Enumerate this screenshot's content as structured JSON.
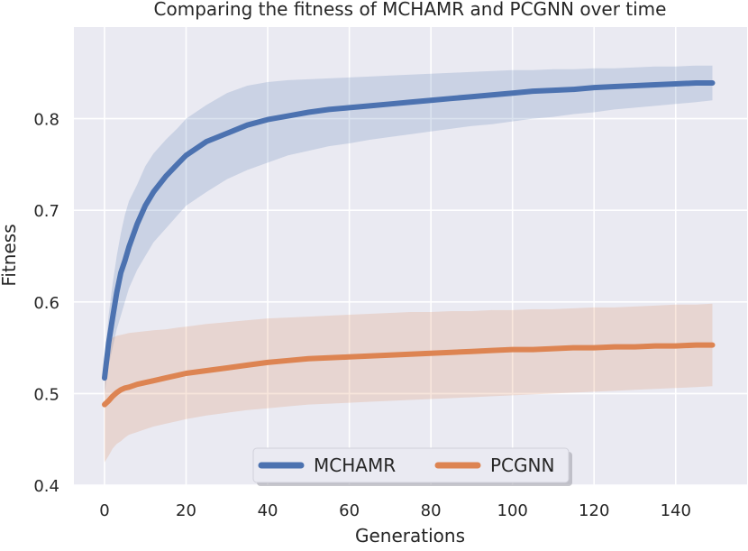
{
  "chart_data": {
    "type": "line",
    "title": "Comparing the fitness of MCHAMR and PCGNN over time",
    "xlabel": "Generations",
    "ylabel": "Fitness",
    "xlim": [
      -7.5,
      157.5
    ],
    "ylim": [
      0.4,
      0.9
    ],
    "xticks": [
      0,
      20,
      40,
      60,
      80,
      100,
      120,
      140
    ],
    "yticks": [
      0.4,
      0.5,
      0.6,
      0.7,
      0.8
    ],
    "xtick_labels": [
      "0",
      "20",
      "40",
      "60",
      "80",
      "100",
      "120",
      "140"
    ],
    "ytick_labels": [
      "0.4",
      "0.5",
      "0.6",
      "0.7",
      "0.8"
    ],
    "grid": true,
    "legend_position": "bottom-center",
    "series": [
      {
        "name": "MCHAMR",
        "color": "#4c72b0",
        "x": [
          0,
          1,
          2,
          3,
          4,
          5,
          6,
          8,
          10,
          12,
          15,
          18,
          20,
          25,
          30,
          35,
          40,
          45,
          50,
          55,
          60,
          65,
          70,
          75,
          80,
          85,
          90,
          95,
          100,
          105,
          110,
          115,
          120,
          125,
          130,
          135,
          140,
          145,
          149
        ],
        "mean": [
          0.517,
          0.555,
          0.583,
          0.61,
          0.632,
          0.645,
          0.66,
          0.685,
          0.705,
          0.72,
          0.737,
          0.751,
          0.76,
          0.775,
          0.784,
          0.793,
          0.799,
          0.803,
          0.807,
          0.81,
          0.812,
          0.814,
          0.816,
          0.818,
          0.82,
          0.822,
          0.824,
          0.826,
          0.828,
          0.83,
          0.831,
          0.832,
          0.834,
          0.835,
          0.836,
          0.837,
          0.838,
          0.839,
          0.839
        ],
        "lower": [
          0.5,
          0.53,
          0.55,
          0.57,
          0.585,
          0.6,
          0.615,
          0.635,
          0.65,
          0.665,
          0.68,
          0.695,
          0.705,
          0.72,
          0.734,
          0.744,
          0.752,
          0.76,
          0.765,
          0.77,
          0.773,
          0.777,
          0.78,
          0.783,
          0.786,
          0.789,
          0.792,
          0.794,
          0.797,
          0.8,
          0.802,
          0.805,
          0.807,
          0.81,
          0.812,
          0.814,
          0.816,
          0.818,
          0.82
        ],
        "upper": [
          0.535,
          0.585,
          0.62,
          0.65,
          0.675,
          0.695,
          0.71,
          0.728,
          0.748,
          0.762,
          0.777,
          0.79,
          0.8,
          0.815,
          0.828,
          0.836,
          0.84,
          0.842,
          0.843,
          0.844,
          0.845,
          0.846,
          0.847,
          0.848,
          0.849,
          0.85,
          0.851,
          0.852,
          0.853,
          0.853,
          0.854,
          0.854,
          0.855,
          0.855,
          0.856,
          0.857,
          0.857,
          0.858,
          0.858
        ]
      },
      {
        "name": "PCGNN",
        "color": "#dd8452",
        "x": [
          0,
          1,
          2,
          3,
          4,
          5,
          6,
          8,
          10,
          12,
          15,
          18,
          20,
          25,
          30,
          35,
          40,
          45,
          50,
          55,
          60,
          65,
          70,
          75,
          80,
          85,
          90,
          95,
          100,
          105,
          110,
          115,
          120,
          125,
          130,
          135,
          140,
          145,
          149
        ],
        "mean": [
          0.488,
          0.492,
          0.497,
          0.501,
          0.504,
          0.506,
          0.507,
          0.51,
          0.512,
          0.514,
          0.517,
          0.52,
          0.522,
          0.525,
          0.528,
          0.531,
          0.534,
          0.536,
          0.538,
          0.539,
          0.54,
          0.541,
          0.542,
          0.543,
          0.544,
          0.545,
          0.546,
          0.547,
          0.548,
          0.548,
          0.549,
          0.55,
          0.55,
          0.551,
          0.551,
          0.552,
          0.552,
          0.553,
          0.553
        ],
        "lower": [
          0.425,
          0.432,
          0.44,
          0.445,
          0.448,
          0.452,
          0.455,
          0.458,
          0.461,
          0.464,
          0.467,
          0.47,
          0.472,
          0.476,
          0.479,
          0.482,
          0.484,
          0.486,
          0.488,
          0.489,
          0.49,
          0.491,
          0.492,
          0.493,
          0.494,
          0.495,
          0.496,
          0.497,
          0.498,
          0.499,
          0.5,
          0.501,
          0.502,
          0.503,
          0.504,
          0.505,
          0.506,
          0.507,
          0.508
        ],
        "upper": [
          0.54,
          0.555,
          0.561,
          0.563,
          0.564,
          0.565,
          0.566,
          0.567,
          0.568,
          0.569,
          0.57,
          0.572,
          0.573,
          0.576,
          0.578,
          0.58,
          0.582,
          0.583,
          0.584,
          0.585,
          0.586,
          0.587,
          0.588,
          0.589,
          0.589,
          0.59,
          0.59,
          0.591,
          0.591,
          0.592,
          0.592,
          0.593,
          0.594,
          0.594,
          0.595,
          0.596,
          0.597,
          0.597,
          0.598
        ]
      }
    ]
  }
}
